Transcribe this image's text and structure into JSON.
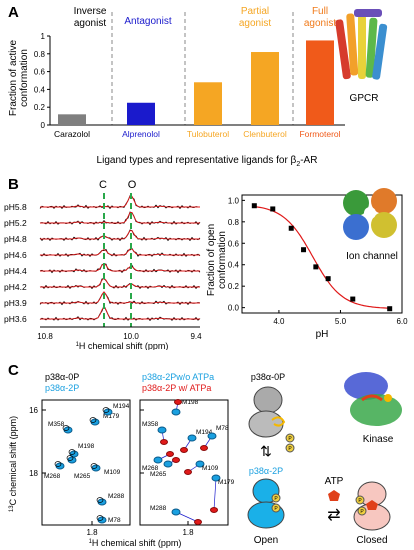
{
  "panel_a": {
    "letter": "A",
    "ligand_types": [
      {
        "label": "Inverse\nagonist",
        "color": "#000000"
      },
      {
        "label": "Antagonist",
        "color": "#1a1acc"
      },
      {
        "label": "Partial\nagonist",
        "color": "#f5a623"
      },
      {
        "label": "Full\nagonist",
        "color": "#f07a1a"
      }
    ],
    "structure_label": "GPCR",
    "xlabel": "Ligand types and representative ligands for β",
    "xlabel_sub": "2",
    "xlabel_tail": "-AR"
  },
  "panel_b": {
    "letter": "B",
    "peak_labels": [
      "C",
      "O"
    ],
    "ph_labels": [
      "pH5.8",
      "pH5.2",
      "pH4.8",
      "pH4.6",
      "pH4.4",
      "pH4.2",
      "pH3.9",
      "pH3.6"
    ],
    "nmr_ticks": [
      "10.8",
      "10.0",
      "9.4"
    ],
    "nmr_xlabel_pre": "H chemical shift (ppm)",
    "nmr_xlabel_sup": "1",
    "structure_label": "Ion channel"
  },
  "panel_c": {
    "letter": "C",
    "legend1": [
      {
        "label": "p38α-0P",
        "color": "#000000"
      },
      {
        "label": "p38α-2P",
        "color": "#1aa0e0"
      }
    ],
    "legend2": [
      {
        "label": "p38α-2Pw/o ATPa",
        "color": "#1aa0e0"
      },
      {
        "label": "p38α-2P w/ ATPa",
        "color": "#e01a1a"
      }
    ],
    "ylabel_sup": "13",
    "ylabel": "C chemical shift (ppm)",
    "xlabel_sup": "1",
    "xlabel": "H chemical shift (ppm)",
    "yticks": [
      "16",
      "18"
    ],
    "xtick": "1.8",
    "residues_left": [
      "M358",
      "M179",
      "M194",
      "M198",
      "M268",
      "M265",
      "M109",
      "M288",
      "M78"
    ],
    "residues_right": [
      "M198",
      "M358",
      "M194",
      "M78",
      "M268",
      "M265",
      "M109",
      "M179",
      "M288"
    ],
    "scheme": {
      "top_label": "p38α-0P",
      "mid_label": "p38α-2P",
      "atp": "ATP",
      "open": "Open",
      "closed": "Closed",
      "p": "P"
    },
    "structure_label": "Kinase"
  },
  "chart_data": [
    {
      "type": "bar",
      "categories": [
        "Carazolol",
        "Alprenolol",
        "Tulobuterol",
        "Clenbuterol",
        "Formoterol"
      ],
      "values": [
        0.12,
        0.25,
        0.48,
        0.82,
        0.95
      ],
      "colors": [
        "#7f7f7f",
        "#1a1acc",
        "#f5a623",
        "#f5a623",
        "#f05a1a"
      ],
      "title": "",
      "xlabel": "Ligand types and representative ligands for β2-AR",
      "ylabel": "Fraction of active conformation",
      "ylim": [
        0,
        1
      ],
      "yticks": [
        "0",
        "0.2",
        "0.4",
        "0.6",
        "0.8",
        "1"
      ]
    },
    {
      "type": "scatter",
      "x": [
        3.6,
        3.9,
        4.2,
        4.4,
        4.6,
        4.8,
        5.2,
        5.8
      ],
      "y": [
        0.95,
        0.92,
        0.74,
        0.54,
        0.38,
        0.27,
        0.08,
        -0.01
      ],
      "fit_line": true,
      "xlabel": "pH",
      "ylabel": "Fraction of open conformation",
      "xlim": [
        3.4,
        6.0
      ],
      "ylim": [
        -0.05,
        1.05
      ],
      "xticks": [
        "4.0",
        "5.0",
        "6.0"
      ],
      "yticks": [
        "0.0",
        "0.2",
        "0.4",
        "0.6",
        "0.8",
        "1.0"
      ]
    }
  ]
}
